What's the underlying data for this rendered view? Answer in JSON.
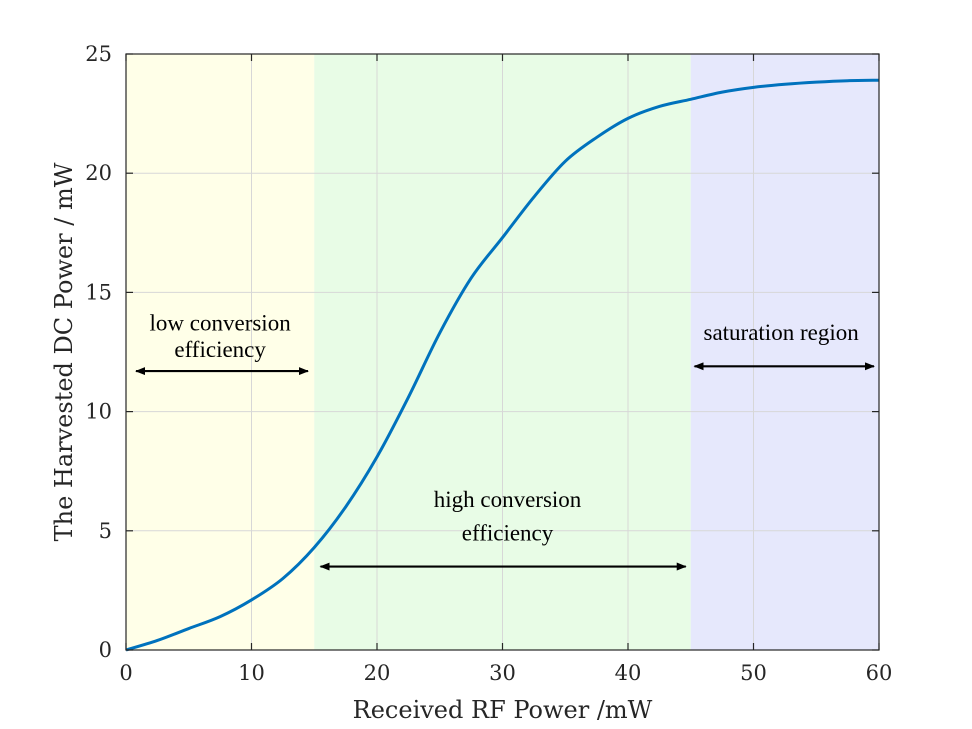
{
  "chart_data": {
    "type": "line",
    "title": "",
    "xlabel": "Received RF Power /mW",
    "ylabel": "The Harvested DC Power / mW",
    "xlim": [
      0,
      60
    ],
    "ylim": [
      0,
      25
    ],
    "grid": true,
    "x_ticks": [
      0,
      10,
      20,
      30,
      40,
      50,
      60
    ],
    "y_ticks": [
      0,
      5,
      10,
      15,
      20,
      25
    ],
    "series": [
      {
        "name": "Harvested DC power",
        "color": "#0072BD",
        "x": [
          0,
          2.5,
          5,
          7.5,
          10,
          12.5,
          15,
          17.5,
          20,
          22.5,
          25,
          27.5,
          30,
          32.5,
          35,
          37.5,
          40,
          42.5,
          45,
          47.5,
          50,
          52.5,
          55,
          57.5,
          60
        ],
        "y": [
          0,
          0.4,
          0.9,
          1.4,
          2.1,
          3.0,
          4.3,
          6.0,
          8.1,
          10.6,
          13.3,
          15.6,
          17.3,
          19.0,
          20.5,
          21.5,
          22.3,
          22.8,
          23.1,
          23.4,
          23.6,
          23.73,
          23.82,
          23.88,
          23.9
        ]
      }
    ],
    "regions": [
      {
        "name": "low-conversion-region",
        "x_range": [
          0,
          15
        ],
        "color": "#FFFFE8"
      },
      {
        "name": "high-conversion-region",
        "x_range": [
          15,
          45
        ],
        "color": "#E8FCE6"
      },
      {
        "name": "saturation-region",
        "x_range": [
          45,
          60
        ],
        "color": "#E6E8FC"
      }
    ],
    "annotations": [
      {
        "name": "low-conversion",
        "lines": [
          "low conversion",
          "efficiency"
        ],
        "x": 7.5,
        "y": [
          13.4,
          12.3
        ],
        "arrow": {
          "x1": 0.8,
          "x2": 14.5,
          "y": 11.7
        }
      },
      {
        "name": "high-conversion",
        "lines": [
          "high conversion",
          "efficiency"
        ],
        "x": 30.4,
        "y": [
          6.0,
          4.6
        ],
        "arrow": {
          "x1": 15.5,
          "x2": 44.6,
          "y": 3.5
        }
      },
      {
        "name": "saturation",
        "lines": [
          "saturation region"
        ],
        "x": 52.2,
        "y": [
          13.0
        ],
        "arrow": {
          "x1": 45.3,
          "x2": 59.6,
          "y": 11.9
        }
      }
    ]
  }
}
